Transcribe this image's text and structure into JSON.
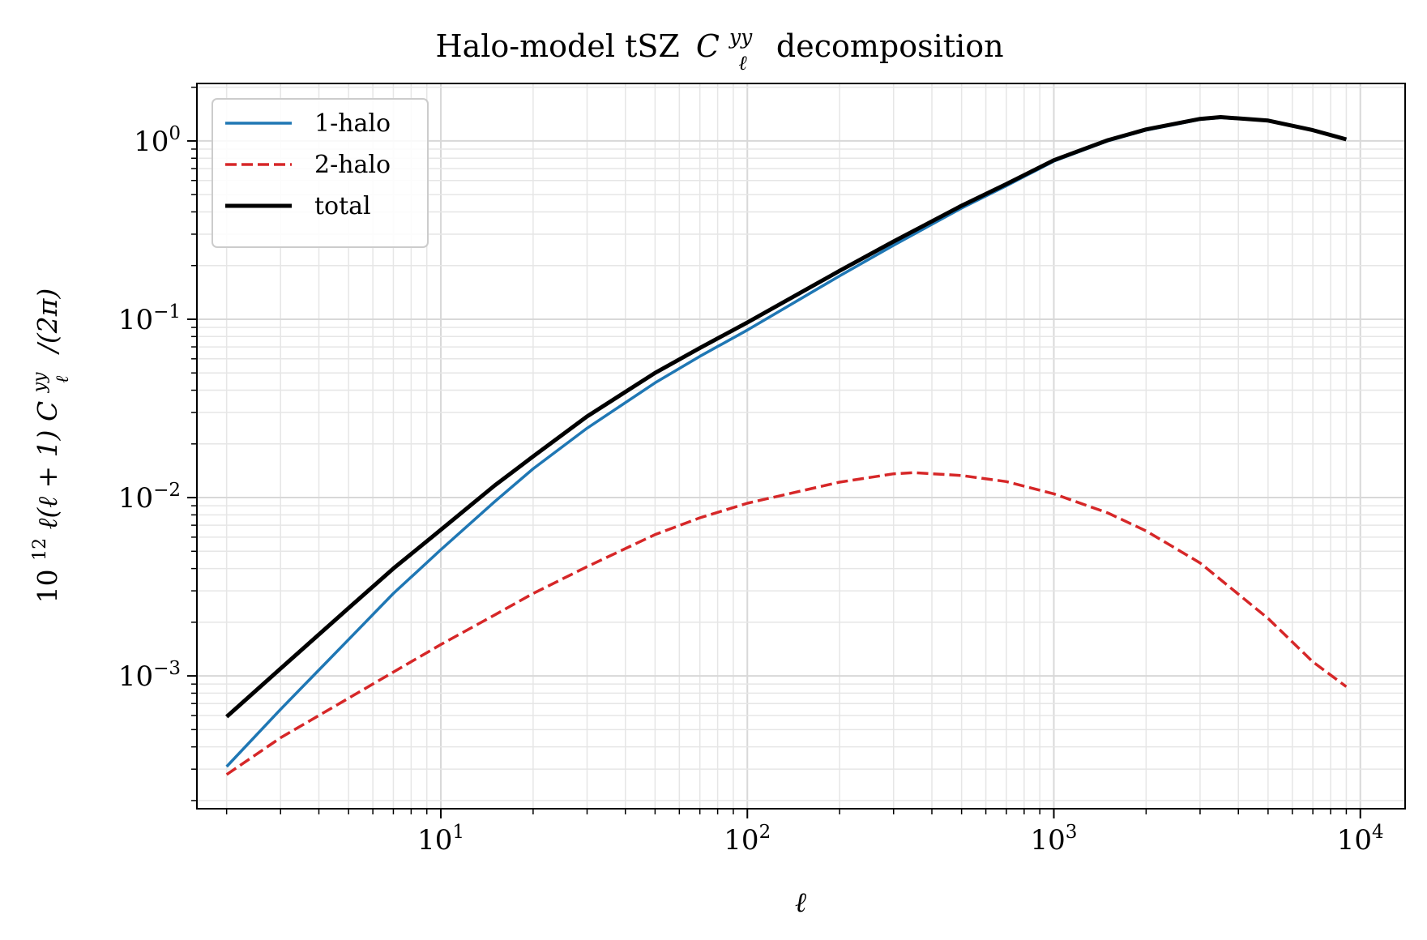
{
  "chart_data": {
    "type": "line",
    "title_prefix": "Halo-model tSZ",
    "title_symbol": "C",
    "title_super": "yy",
    "title_sub": "ℓ",
    "title_suffix": "decomposition",
    "xlabel": "ℓ",
    "ylabel_parts": {
      "base": "10",
      "exp": "12",
      "mid": " ℓ(ℓ + 1) ",
      "symbol": "C",
      "super": "yy",
      "sub": "ℓ",
      "tail": "/(2π)"
    },
    "x_scale": "log",
    "y_scale": "log",
    "xlim": [
      1.6,
      14000
    ],
    "ylim": [
      0.00018,
      2.1
    ],
    "grid": true,
    "legend_position": "top-left",
    "x_ticks": [
      {
        "value": 10,
        "base": "10",
        "exp": "1"
      },
      {
        "value": 100,
        "base": "10",
        "exp": "2"
      },
      {
        "value": 1000,
        "base": "10",
        "exp": "3"
      },
      {
        "value": 10000,
        "base": "10",
        "exp": "4"
      }
    ],
    "y_ticks": [
      {
        "value": 0.001,
        "base": "10",
        "exp": "−3"
      },
      {
        "value": 0.01,
        "base": "10",
        "exp": "−2"
      },
      {
        "value": 0.1,
        "base": "10",
        "exp": "−1"
      },
      {
        "value": 1,
        "base": "10",
        "exp": "0"
      }
    ],
    "series": [
      {
        "name": "1-halo",
        "color": "#1f77b4",
        "dash": "solid",
        "x": [
          2,
          3,
          5,
          7,
          10,
          15,
          20,
          30,
          50,
          70,
          100,
          200,
          300,
          500,
          700,
          1000,
          1500,
          2000,
          3000,
          3500,
          5000,
          7000,
          9000
        ],
        "y": [
          0.00031,
          0.00065,
          0.0016,
          0.0029,
          0.0051,
          0.0095,
          0.0145,
          0.0245,
          0.044,
          0.062,
          0.087,
          0.175,
          0.26,
          0.42,
          0.56,
          0.77,
          1.0,
          1.15,
          1.32,
          1.35,
          1.3,
          1.15,
          1.02
        ]
      },
      {
        "name": "2-halo",
        "color": "#d62728",
        "dash": "dashed",
        "x": [
          2,
          3,
          5,
          7,
          10,
          15,
          20,
          30,
          50,
          70,
          100,
          200,
          300,
          350,
          500,
          700,
          1000,
          1500,
          2000,
          3000,
          5000,
          7000,
          9000
        ],
        "y": [
          0.00028,
          0.00045,
          0.00075,
          0.00105,
          0.0015,
          0.0022,
          0.0029,
          0.0041,
          0.0062,
          0.0077,
          0.0093,
          0.0122,
          0.0136,
          0.0138,
          0.0133,
          0.0123,
          0.0105,
          0.0082,
          0.0065,
          0.0043,
          0.0021,
          0.0012,
          0.00087
        ]
      },
      {
        "name": "total",
        "color": "#000000",
        "dash": "solid",
        "x": [
          2,
          3,
          5,
          7,
          10,
          15,
          20,
          30,
          50,
          70,
          100,
          200,
          300,
          500,
          700,
          1000,
          1500,
          2000,
          3000,
          3500,
          5000,
          7000,
          9000
        ],
        "y": [
          0.00059,
          0.0011,
          0.0024,
          0.004,
          0.0066,
          0.0117,
          0.017,
          0.0285,
          0.05,
          0.069,
          0.096,
          0.187,
          0.273,
          0.433,
          0.573,
          0.78,
          1.01,
          1.16,
          1.33,
          1.36,
          1.3,
          1.15,
          1.02
        ]
      }
    ]
  }
}
